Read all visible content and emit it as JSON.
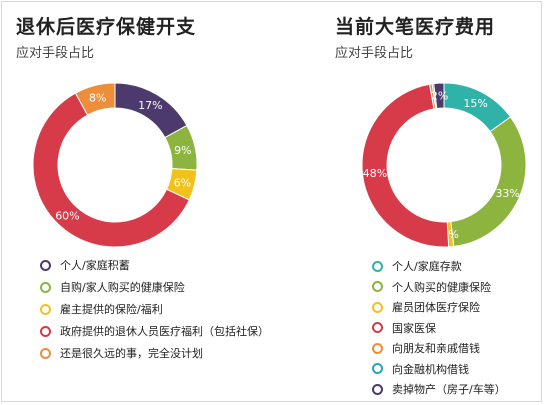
{
  "chart_data": [
    {
      "type": "pie",
      "title": "退休后医疗保健开支",
      "subtitle": "应对手段占比",
      "series": [
        {
          "name": "个人/家庭积蓄",
          "value": 17,
          "label": "17%",
          "color": "#4b3a6b"
        },
        {
          "name": "自购/家人购买的健康保险",
          "value": 9,
          "label": "9%",
          "color": "#8db43e"
        },
        {
          "name": "雇主提供的保险/福利",
          "value": 6,
          "label": "6%",
          "color": "#f2c21b"
        },
        {
          "name": "政府提供的退休人员医疗福利（包括社保）",
          "value": 60,
          "label": "60%",
          "color": "#d73a49"
        },
        {
          "name": "还是很久远的事，完全没计划",
          "value": 8,
          "label": "8%",
          "color": "#ef8e3a"
        }
      ],
      "legend": [
        "个人/家庭积蓄",
        "自购/家人购买的健康保险",
        "雇主提供的保险/福利",
        "政府提供的退休人员医疗福利（包括社保）",
        "还是很久远的事，完全没计划"
      ],
      "legend_placement": "bottom"
    },
    {
      "type": "pie",
      "title": "当前大笔医疗费用",
      "subtitle": "应对手段占比",
      "series": [
        {
          "name": "个人/家庭存款",
          "value": 15,
          "label": "15%",
          "color": "#2fb3a8"
        },
        {
          "name": "个人购买的健康保险",
          "value": 33,
          "label": "33%",
          "color": "#8db43e"
        },
        {
          "name": "雇员团体医疗保险",
          "value": 1,
          "label": "1%",
          "color": "#f2c21b"
        },
        {
          "name": "国家医保",
          "value": 48,
          "label": "48%",
          "color": "#d73a49"
        },
        {
          "name": "向朋友和亲戚借钱",
          "value": 0.5,
          "label": "",
          "color": "#ef8e3a"
        },
        {
          "name": "向金融机构借钱",
          "value": 0.3,
          "label": "",
          "color": "#27a6b8"
        },
        {
          "name": "卖掉物产（房子/车等）",
          "value": 2,
          "label": "2%",
          "color": "#4b3a6b"
        }
      ],
      "legend": [
        "个人/家庭存款",
        "个人购买的健康保险",
        "雇员团体医疗保险",
        "国家医保",
        "向朋友和亲戚借钱",
        "向金融机构借钱",
        "卖掉物产（房子/车等）"
      ],
      "legend_placement": "bottom"
    }
  ]
}
